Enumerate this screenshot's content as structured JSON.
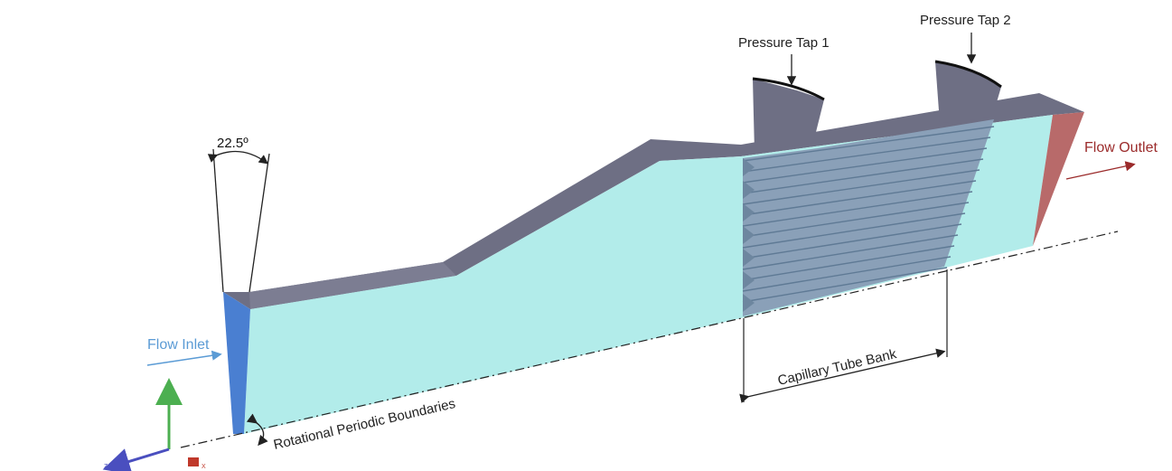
{
  "labels": {
    "angle": "22.5º",
    "pressure_tap_1": "Pressure Tap 1",
    "pressure_tap_2": "Pressure Tap 2",
    "flow_inlet": "Flow Inlet",
    "flow_outlet": "Flow Outlet",
    "capillary_tube_bank": "Capillary Tube Bank",
    "rotational_periodic_boundaries": "Rotational Periodic Boundaries"
  },
  "axes": {
    "x": "X",
    "y": "Y",
    "z": "Z"
  },
  "colors": {
    "side_face": "#b2ecea",
    "top_face": "#6e6f84",
    "top_face_light": "#8a8ba0",
    "inlet_face": "#4a7fd1",
    "outlet_face": "#b86a6a",
    "inlet_label": "#5b9bd5",
    "outlet_label": "#9b2b2b",
    "tube_lines": "#5f7a95",
    "axis_x": "#c0392b",
    "axis_y": "#4caf50",
    "axis_z": "#4a4fbf"
  }
}
